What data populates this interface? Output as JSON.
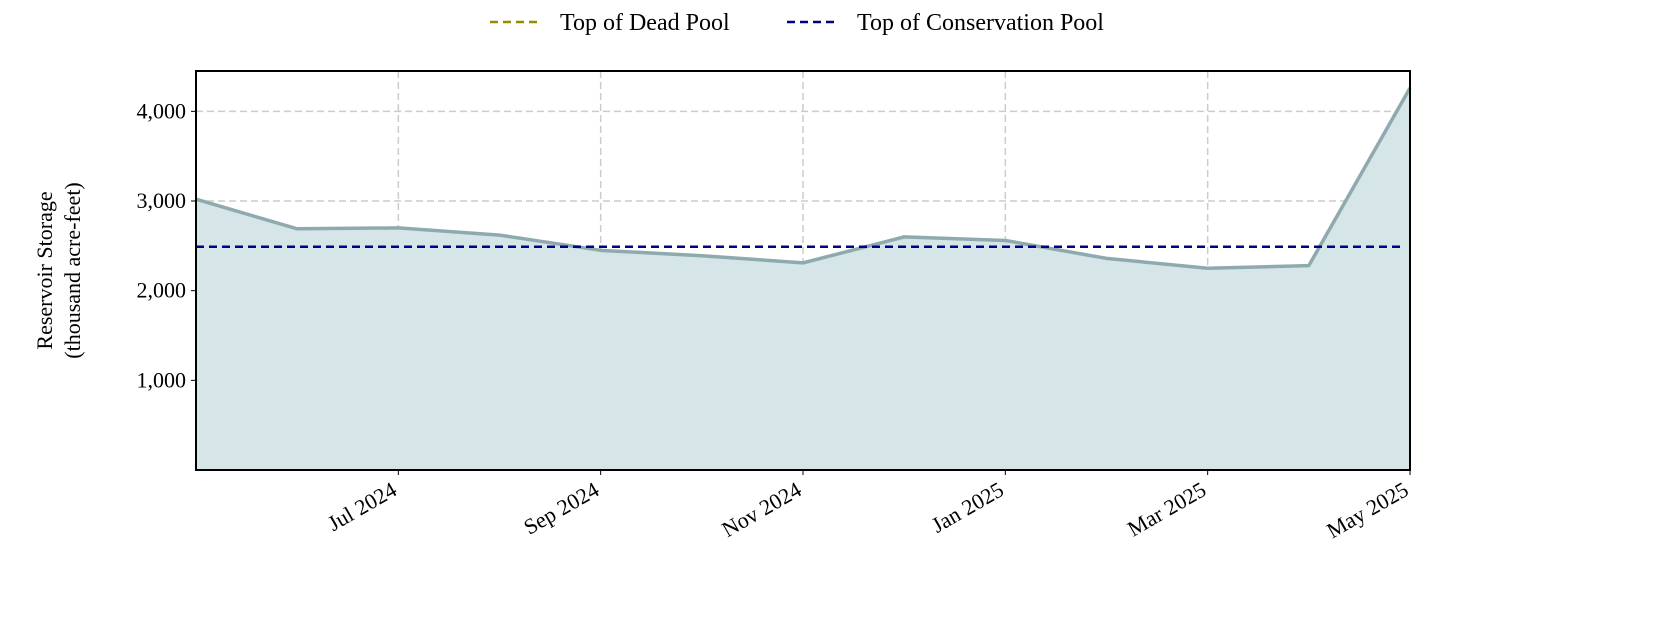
{
  "chart_data": {
    "type": "area",
    "ylabel": [
      "Reservoir Storage",
      "(thousand acre-feet)"
    ],
    "x": [
      "2024-05",
      "2024-06",
      "2024-07",
      "2024-08",
      "2024-09",
      "2024-10",
      "2024-11",
      "2024-12",
      "2025-01",
      "2025-02",
      "2025-03",
      "2025-04",
      "2025-05"
    ],
    "series": [
      {
        "name": "Reservoir Storage",
        "color": "#8faaae",
        "fill": "#d6e5e7",
        "values": [
          3020,
          2690,
          2700,
          2620,
          2450,
          2390,
          2310,
          2600,
          2560,
          2360,
          2250,
          2280,
          4260
        ]
      }
    ],
    "reference_lines": [
      {
        "name": "Top of Dead Pool",
        "color": "#9a8a00"
      },
      {
        "name": "Top of Conservation Pool",
        "color": "#00008b",
        "value": 2490
      }
    ],
    "xlim": [
      "2024-05",
      "2025-05"
    ],
    "xticks": [
      {
        "value": "2024-07",
        "label": "Jul 2024"
      },
      {
        "value": "2024-09",
        "label": "Sep 2024"
      },
      {
        "value": "2024-11",
        "label": "Nov 2024"
      },
      {
        "value": "2025-01",
        "label": "Jan 2025"
      },
      {
        "value": "2025-03",
        "label": "Mar 2025"
      },
      {
        "value": "2025-05",
        "label": "May 2025"
      }
    ],
    "ylim": [
      0,
      4450
    ],
    "yticks": [
      {
        "value": 1000,
        "label": "1,000"
      },
      {
        "value": 2000,
        "label": "2,000"
      },
      {
        "value": 3000,
        "label": "3,000"
      },
      {
        "value": 4000,
        "label": "4,000"
      }
    ],
    "grid": true
  }
}
